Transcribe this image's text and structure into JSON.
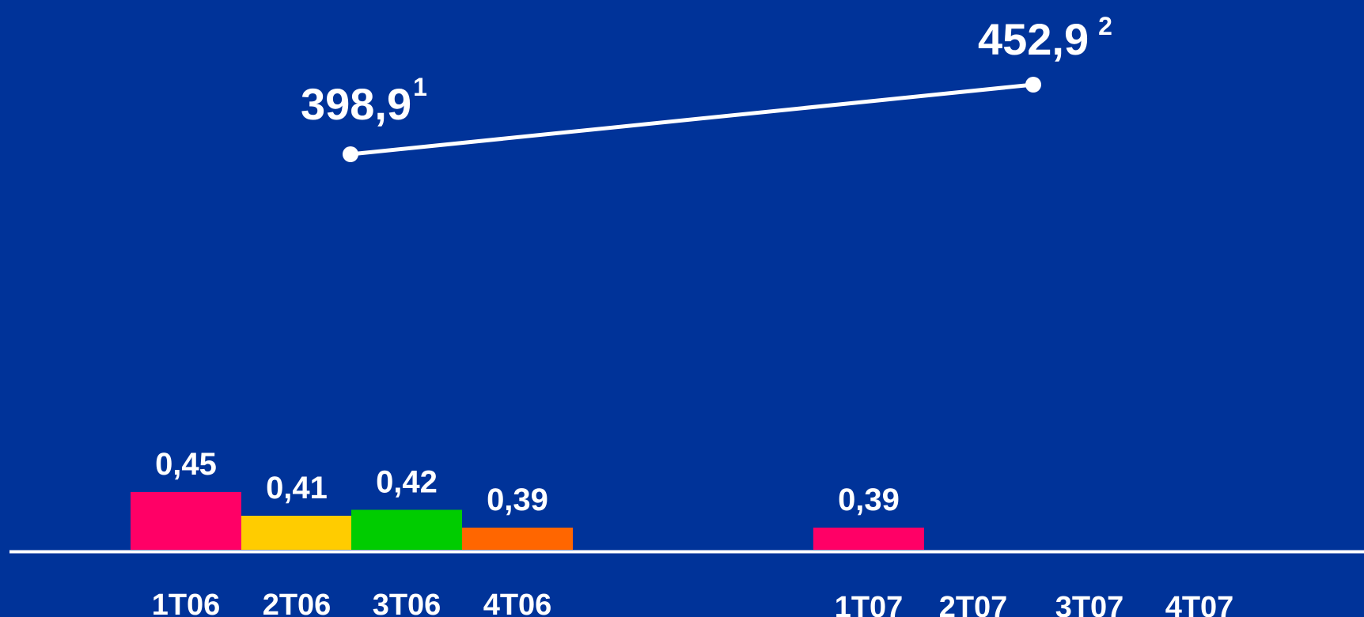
{
  "chart_data": {
    "type": "bar",
    "background": "#003399",
    "categories": [
      "1T06",
      "2T06",
      "3T06",
      "4T06",
      "1T07",
      "2T07",
      "3T07",
      "4T07"
    ],
    "bars": {
      "values": [
        0.45,
        0.41,
        0.42,
        0.39,
        0.39,
        null,
        null,
        null
      ],
      "labels": [
        "0,45",
        "0,41",
        "0,42",
        "0,39",
        "0,39",
        "",
        "",
        ""
      ],
      "colors": [
        "#ff0066",
        "#ffcc00",
        "#00cc00",
        "#ff6600",
        "#ff0066",
        "",
        "",
        ""
      ]
    },
    "line": {
      "points": [
        {
          "label": "398,9",
          "sup": "1",
          "value": 398.9
        },
        {
          "label": "452,9",
          "sup": "2",
          "value": 452.9
        }
      ],
      "color": "#ffffff"
    }
  }
}
